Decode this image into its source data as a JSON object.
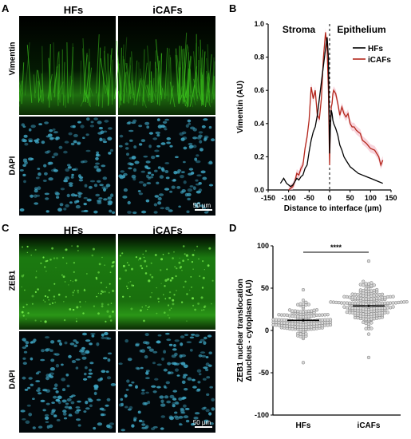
{
  "panels": {
    "A": {
      "letter": "A",
      "columns": [
        "HFs",
        "iCAFs"
      ],
      "rows": [
        "Vimentin",
        "DAPI"
      ],
      "scalebar": "50 µm"
    },
    "B": {
      "letter": "B"
    },
    "C": {
      "letter": "C",
      "columns": [
        "HFs",
        "iCAFs"
      ],
      "rows": [
        "ZEB1",
        "DAPI"
      ],
      "scalebar": "50 µm"
    },
    "D": {
      "letter": "D"
    }
  },
  "colors": {
    "green": "#39c21a",
    "cyan": "#3fa6c4",
    "hf_line": "#000000",
    "icaf_line": "#b3271c",
    "icaf_band": "#f4b8c4"
  },
  "chart_data": [
    {
      "type": "line",
      "panel": "B",
      "title": "",
      "xlabel": "Distance to interface (µm)",
      "ylabel": "Vimentin (AU)",
      "xlim": [
        -150,
        150
      ],
      "ylim": [
        0,
        1.0
      ],
      "xticks": [
        "-150",
        "-100",
        "-50",
        "0",
        "50",
        "100",
        "150"
      ],
      "yticks": [
        "0.0",
        "0.2",
        "0.4",
        "0.6",
        "0.8",
        "1.0"
      ],
      "annotations": [
        "Stroma",
        "Epithelium"
      ],
      "interface_x": 0,
      "legend_position": "top-right",
      "series": [
        {
          "name": "HFs",
          "color": "#000000",
          "x": [
            -120,
            -112,
            -105,
            -100,
            -95,
            -90,
            -85,
            -80,
            -75,
            -70,
            -65,
            -60,
            -55,
            -50,
            -45,
            -40,
            -35,
            -30,
            -25,
            -20,
            -15,
            -10,
            -6,
            -3,
            -1,
            0,
            2,
            4,
            6,
            8,
            10,
            15,
            20,
            25,
            30,
            35,
            40,
            50,
            60,
            70,
            80,
            90,
            100,
            110,
            120,
            130
          ],
          "y": [
            0.04,
            0.07,
            0.04,
            0.03,
            0.02,
            0.03,
            0.05,
            0.07,
            0.06,
            0.08,
            0.09,
            0.13,
            0.15,
            0.23,
            0.3,
            0.35,
            0.38,
            0.45,
            0.55,
            0.65,
            0.75,
            0.85,
            0.92,
            0.8,
            0.45,
            0.22,
            0.38,
            0.48,
            0.46,
            0.42,
            0.4,
            0.37,
            0.33,
            0.27,
            0.24,
            0.2,
            0.18,
            0.14,
            0.12,
            0.1,
            0.09,
            0.08,
            0.07,
            0.06,
            0.05,
            0.04
          ]
        },
        {
          "name": "iCAFs",
          "color": "#b3271c",
          "x": [
            -100,
            -95,
            -90,
            -85,
            -80,
            -75,
            -70,
            -65,
            -60,
            -55,
            -50,
            -45,
            -40,
            -35,
            -30,
            -25,
            -20,
            -15,
            -10,
            -6,
            -3,
            -1,
            0,
            2,
            4,
            6,
            8,
            10,
            15,
            20,
            25,
            30,
            35,
            40,
            45,
            50,
            55,
            60,
            65,
            70,
            75,
            80,
            90,
            100,
            110,
            120,
            125,
            130
          ],
          "y": [
            0.0,
            0.01,
            0.02,
            0.05,
            0.1,
            0.09,
            0.13,
            0.15,
            0.25,
            0.32,
            0.42,
            0.62,
            0.55,
            0.6,
            0.45,
            0.43,
            0.55,
            0.8,
            0.95,
            0.85,
            0.6,
            0.3,
            0.15,
            0.4,
            0.5,
            0.52,
            0.58,
            0.6,
            0.58,
            0.52,
            0.45,
            0.5,
            0.46,
            0.44,
            0.46,
            0.4,
            0.38,
            0.38,
            0.36,
            0.35,
            0.34,
            0.3,
            0.28,
            0.25,
            0.24,
            0.2,
            0.15,
            0.18
          ]
        }
      ]
    },
    {
      "type": "scatter",
      "panel": "D",
      "title": "",
      "ylabel_line1": "ZEB1 nuclear translocation",
      "ylabel_line2": "Δnucleus - cytoplasm (AU)",
      "ylim": [
        -100,
        100
      ],
      "yticks": [
        "100",
        "50",
        "0",
        "-50",
        "-100"
      ],
      "categories": [
        "HFs",
        "iCAFs"
      ],
      "significance": "****",
      "groups": [
        {
          "name": "HFs",
          "mean": 12,
          "sem": 1.5,
          "n": 150,
          "center": 12,
          "sd": 10,
          "min": -38,
          "max": 48
        },
        {
          "name": "iCAFs",
          "mean": 29,
          "sem": 1.5,
          "n": 200,
          "center": 29,
          "sd": 13,
          "min": -32,
          "max": 82
        }
      ]
    }
  ]
}
